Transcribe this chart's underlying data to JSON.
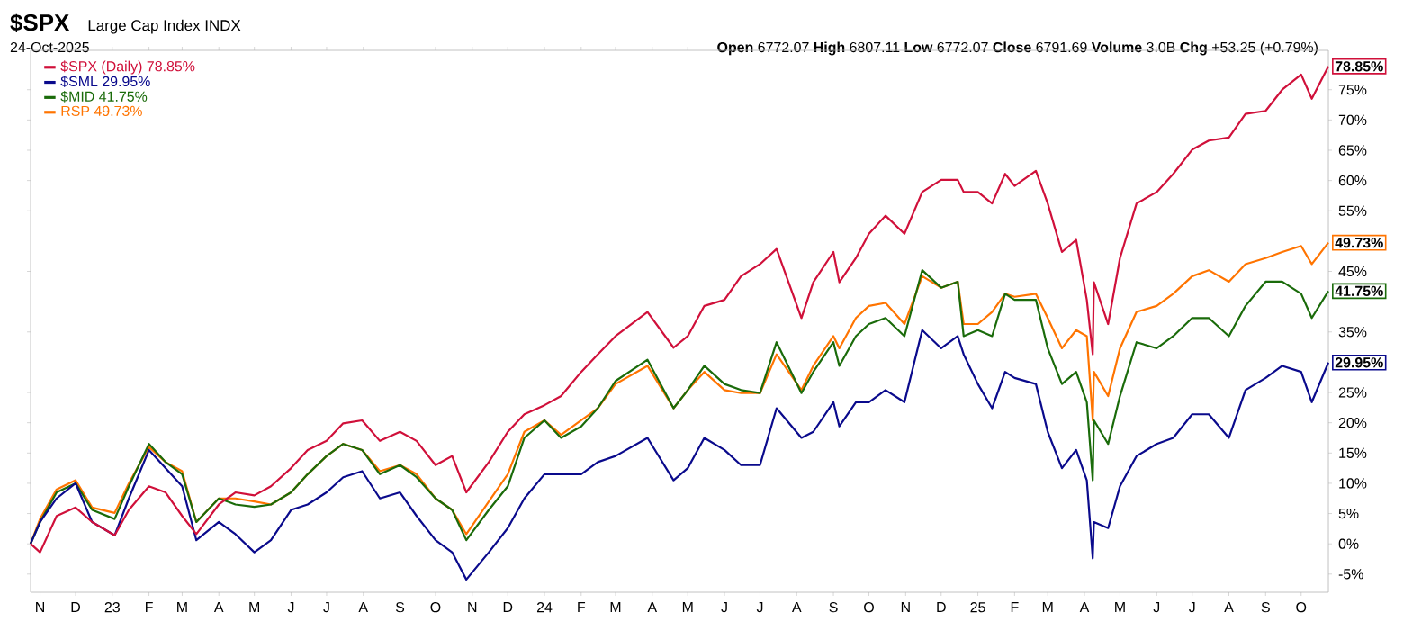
{
  "chart_data": {
    "type": "line",
    "title": "$SPX",
    "subtitle": "Large Cap Index INDX",
    "annotations": [
      "24-Oct-2025",
      "**Open** 6772.07 **High** 6807.11 **Low** 6772.07 **Close** 6791.69 **Volume** 3.0B **Chg** +53.25 (+0.79%)"
    ],
    "x": [
      "2022-10-24",
      "2022-11-01",
      "2022-11-15",
      "2022-12-01",
      "2022-12-15",
      "2023-01-03",
      "2023-01-15",
      "2023-02-01",
      "2023-02-15",
      "2023-03-01",
      "2023-03-13",
      "2023-04-01",
      "2023-04-15",
      "2023-05-01",
      "2023-05-15",
      "2023-06-01",
      "2023-06-15",
      "2023-07-01",
      "2023-07-15",
      "2023-07-31",
      "2023-08-15",
      "2023-09-01",
      "2023-09-15",
      "2023-10-01",
      "2023-10-15",
      "2023-10-27",
      "2023-11-15",
      "2023-12-01",
      "2023-12-15",
      "2024-01-01",
      "2024-01-15",
      "2024-02-01",
      "2024-02-15",
      "2024-03-01",
      "2024-03-28",
      "2024-04-19",
      "2024-05-01",
      "2024-05-15",
      "2024-06-01",
      "2024-06-15",
      "2024-07-01",
      "2024-07-15",
      "2024-08-05",
      "2024-08-15",
      "2024-09-01",
      "2024-09-06",
      "2024-09-20",
      "2024-10-01",
      "2024-10-15",
      "2024-10-31",
      "2024-11-15",
      "2024-12-01",
      "2024-12-15",
      "2024-12-20",
      "2025-01-01",
      "2025-01-13",
      "2025-01-24",
      "2025-02-01",
      "2025-02-19",
      "2025-03-01",
      "2025-03-13",
      "2025-03-25",
      "2025-04-03",
      "2025-04-08",
      "2025-04-09",
      "2025-04-21",
      "2025-05-01",
      "2025-05-15",
      "2025-06-01",
      "2025-06-15",
      "2025-07-01",
      "2025-07-15",
      "2025-08-01",
      "2025-08-15",
      "2025-09-01",
      "2025-09-15",
      "2025-10-01",
      "2025-10-10",
      "2025-10-24"
    ],
    "series": [
      {
        "name": "$SPX (Daily) 78.85%",
        "color": "#d0103a",
        "values": [
          0,
          -1.4,
          4.6,
          6.0,
          3.6,
          1.4,
          5.6,
          9.5,
          8.5,
          4.6,
          1.6,
          6.5,
          8.5,
          8.0,
          9.5,
          12.5,
          15.5,
          17.0,
          19.9,
          20.4,
          17.0,
          18.5,
          17.0,
          13.0,
          14.5,
          8.5,
          13.5,
          18.5,
          21.4,
          22.9,
          24.4,
          28.4,
          31.3,
          34.3,
          38.3,
          32.4,
          34.3,
          39.3,
          40.3,
          44.2,
          46.2,
          48.7,
          37.3,
          43.2,
          48.2,
          43.2,
          47.2,
          51.2,
          54.2,
          51.2,
          58.1,
          60.1,
          60.1,
          58.1,
          58.1,
          56.2,
          61.1,
          59.1,
          61.6,
          56.2,
          48.2,
          50.2,
          40.3,
          31.3,
          43.2,
          36.3,
          47.2,
          56.2,
          58.1,
          61.1,
          65.1,
          66.6,
          67.1,
          71.0,
          71.5,
          75.0,
          77.5,
          73.5,
          78.85
        ],
        "value_labels": [
          null,
          null,
          null,
          null,
          null,
          null,
          null,
          null,
          null,
          null,
          null,
          null,
          null,
          null,
          null,
          null,
          null,
          null,
          null,
          null,
          null,
          null,
          null,
          null,
          null,
          null,
          null,
          null,
          null,
          null,
          null,
          null,
          null,
          null,
          null,
          null,
          null,
          null,
          null,
          null,
          null,
          null,
          null,
          null,
          null,
          null,
          null,
          null,
          null,
          null,
          null,
          null,
          null,
          null,
          null,
          null,
          null,
          null,
          null,
          null,
          null,
          null,
          null,
          null,
          null,
          null,
          null,
          null,
          null,
          null,
          null,
          null,
          null,
          null,
          null,
          null,
          null,
          null,
          "78.85%"
        ]
      },
      {
        "name": "$SML 29.95%",
        "color": "#0a0a8c",
        "values": [
          0,
          3.6,
          7.5,
          10.0,
          3.6,
          1.4,
          7.5,
          15.5,
          12.5,
          9.5,
          0.6,
          3.6,
          1.6,
          -1.4,
          0.6,
          5.6,
          6.5,
          8.5,
          11.0,
          12.0,
          7.5,
          8.5,
          4.6,
          0.6,
          -1.4,
          -5.9,
          -1.4,
          2.6,
          7.5,
          11.5,
          11.5,
          11.5,
          13.5,
          14.5,
          17.5,
          10.5,
          12.5,
          17.5,
          15.5,
          13.0,
          13.0,
          22.4,
          17.5,
          18.5,
          23.4,
          19.4,
          23.4,
          23.4,
          25.4,
          23.4,
          35.3,
          32.3,
          34.3,
          31.3,
          26.4,
          22.4,
          28.4,
          27.4,
          26.4,
          18.5,
          12.5,
          15.5,
          10.5,
          -2.4,
          3.6,
          2.6,
          9.5,
          14.5,
          16.5,
          17.5,
          21.4,
          21.4,
          17.5,
          25.4,
          27.4,
          29.4,
          28.4,
          23.4,
          29.95
        ],
        "value_labels": [
          null,
          null,
          null,
          null,
          null,
          null,
          null,
          null,
          null,
          null,
          null,
          null,
          null,
          null,
          null,
          null,
          null,
          null,
          null,
          null,
          null,
          null,
          null,
          null,
          null,
          null,
          null,
          null,
          null,
          null,
          null,
          null,
          null,
          null,
          null,
          null,
          null,
          null,
          null,
          null,
          null,
          null,
          null,
          null,
          null,
          null,
          null,
          null,
          null,
          null,
          null,
          null,
          null,
          null,
          null,
          null,
          null,
          null,
          null,
          null,
          null,
          null,
          null,
          null,
          null,
          null,
          null,
          null,
          null,
          null,
          null,
          null,
          null,
          null,
          null,
          null,
          null,
          null,
          "29.95%"
        ]
      },
      {
        "name": "$MID 41.75%",
        "color": "#1a6b0a",
        "values": [
          0,
          3.6,
          8.5,
          10.0,
          5.6,
          4.1,
          9.5,
          16.5,
          13.5,
          11.5,
          3.6,
          7.5,
          6.5,
          6.1,
          6.5,
          8.5,
          11.5,
          14.5,
          16.5,
          15.5,
          11.5,
          13.0,
          11.0,
          7.5,
          5.6,
          0.6,
          5.6,
          9.5,
          17.5,
          20.4,
          17.5,
          19.4,
          22.4,
          26.9,
          30.4,
          22.4,
          25.4,
          29.4,
          26.4,
          25.4,
          24.9,
          33.3,
          24.9,
          28.4,
          33.3,
          29.4,
          34.3,
          36.3,
          37.3,
          34.3,
          45.2,
          42.3,
          43.3,
          34.3,
          35.3,
          34.3,
          41.3,
          40.3,
          40.3,
          32.3,
          26.4,
          28.4,
          23.4,
          10.5,
          20.4,
          16.5,
          24.4,
          33.3,
          32.3,
          34.3,
          37.3,
          37.3,
          34.3,
          39.3,
          43.3,
          43.3,
          41.3,
          37.3,
          41.75
        ],
        "value_labels": [
          null,
          null,
          null,
          null,
          null,
          null,
          null,
          null,
          null,
          null,
          null,
          null,
          null,
          null,
          null,
          null,
          null,
          null,
          null,
          null,
          null,
          null,
          null,
          null,
          null,
          null,
          null,
          null,
          null,
          null,
          null,
          null,
          null,
          null,
          null,
          null,
          null,
          null,
          null,
          null,
          null,
          null,
          null,
          null,
          null,
          null,
          null,
          null,
          null,
          null,
          null,
          null,
          null,
          null,
          null,
          null,
          null,
          null,
          null,
          null,
          null,
          null,
          null,
          null,
          null,
          null,
          null,
          null,
          null,
          null,
          null,
          null,
          null,
          null,
          null,
          null,
          null,
          null,
          "41.75%"
        ]
      },
      {
        "name": "RSP 49.73%",
        "color": "#ff7400",
        "values": [
          0,
          4.1,
          9.0,
          10.5,
          6.0,
          5.1,
          10.0,
          16.0,
          13.5,
          12.0,
          3.6,
          7.5,
          7.5,
          7.0,
          6.5,
          8.5,
          11.5,
          14.5,
          16.5,
          15.5,
          12.0,
          13.0,
          11.5,
          7.5,
          5.6,
          1.6,
          7.0,
          11.5,
          18.5,
          20.4,
          18.0,
          20.4,
          22.4,
          26.4,
          29.4,
          22.4,
          25.4,
          28.4,
          25.4,
          24.9,
          24.9,
          31.3,
          25.4,
          29.4,
          34.3,
          32.3,
          37.3,
          39.3,
          39.8,
          36.3,
          44.2,
          42.3,
          43.3,
          36.3,
          36.3,
          38.3,
          41.3,
          40.8,
          41.3,
          37.3,
          32.3,
          35.3,
          34.3,
          20.4,
          28.4,
          24.4,
          32.3,
          38.3,
          39.3,
          41.3,
          44.2,
          45.2,
          43.3,
          46.2,
          47.2,
          48.2,
          49.2,
          46.2,
          49.73
        ],
        "value_labels": [
          null,
          null,
          null,
          null,
          null,
          null,
          null,
          null,
          null,
          null,
          null,
          null,
          null,
          null,
          null,
          null,
          null,
          null,
          null,
          null,
          null,
          null,
          null,
          null,
          null,
          null,
          null,
          null,
          null,
          null,
          null,
          null,
          null,
          null,
          null,
          null,
          null,
          null,
          null,
          null,
          null,
          null,
          null,
          null,
          null,
          null,
          null,
          null,
          null,
          null,
          null,
          null,
          null,
          null,
          null,
          null,
          null,
          null,
          null,
          null,
          null,
          null,
          null,
          null,
          null,
          null,
          null,
          null,
          null,
          null,
          null,
          null,
          null,
          null,
          null,
          null,
          null,
          null,
          "49.73%"
        ]
      }
    ],
    "xlim": [
      "2022-10-24",
      "2025-10-24"
    ],
    "xticks": [
      {
        "value": "2022-11-01",
        "label": "N"
      },
      {
        "value": "2022-12-01",
        "label": "D"
      },
      {
        "value": "2023-01-01",
        "label": "23"
      },
      {
        "value": "2023-02-01",
        "label": "F"
      },
      {
        "value": "2023-03-01",
        "label": "M"
      },
      {
        "value": "2023-04-01",
        "label": "A"
      },
      {
        "value": "2023-05-01",
        "label": "M"
      },
      {
        "value": "2023-06-01",
        "label": "J"
      },
      {
        "value": "2023-07-01",
        "label": "J"
      },
      {
        "value": "2023-08-01",
        "label": "A"
      },
      {
        "value": "2023-09-01",
        "label": "S"
      },
      {
        "value": "2023-10-01",
        "label": "O"
      },
      {
        "value": "2023-11-01",
        "label": "N"
      },
      {
        "value": "2023-12-01",
        "label": "D"
      },
      {
        "value": "2024-01-01",
        "label": "24"
      },
      {
        "value": "2024-02-01",
        "label": "F"
      },
      {
        "value": "2024-03-01",
        "label": "M"
      },
      {
        "value": "2024-04-01",
        "label": "A"
      },
      {
        "value": "2024-05-01",
        "label": "M"
      },
      {
        "value": "2024-06-01",
        "label": "J"
      },
      {
        "value": "2024-07-01",
        "label": "J"
      },
      {
        "value": "2024-08-01",
        "label": "A"
      },
      {
        "value": "2024-09-01",
        "label": "S"
      },
      {
        "value": "2024-10-01",
        "label": "O"
      },
      {
        "value": "2024-11-01",
        "label": "N"
      },
      {
        "value": "2024-12-01",
        "label": "D"
      },
      {
        "value": "2025-01-01",
        "label": "25"
      },
      {
        "value": "2025-02-01",
        "label": "F"
      },
      {
        "value": "2025-03-01",
        "label": "M"
      },
      {
        "value": "2025-04-01",
        "label": "A"
      },
      {
        "value": "2025-05-01",
        "label": "M"
      },
      {
        "value": "2025-06-01",
        "label": "J"
      },
      {
        "value": "2025-07-01",
        "label": "J"
      },
      {
        "value": "2025-08-01",
        "label": "A"
      },
      {
        "value": "2025-09-01",
        "label": "S"
      },
      {
        "value": "2025-10-01",
        "label": "O"
      }
    ],
    "ylim": [
      -8,
      81.5
    ],
    "yticks": [
      {
        "value": -5,
        "label": "-5%"
      },
      {
        "value": 0,
        "label": "0%"
      },
      {
        "value": 5,
        "label": "5%"
      },
      {
        "value": 10,
        "label": "10%"
      },
      {
        "value": 15,
        "label": "15%"
      },
      {
        "value": 20,
        "label": "20%"
      },
      {
        "value": 25,
        "label": "25%"
      },
      {
        "value": 35,
        "label": "35%"
      },
      {
        "value": 45,
        "label": "45%"
      },
      {
        "value": 55,
        "label": "55%"
      },
      {
        "value": 60,
        "label": "60%"
      },
      {
        "value": 65,
        "label": "65%"
      },
      {
        "value": 70,
        "label": "70%"
      },
      {
        "value": 75,
        "label": "75%"
      }
    ],
    "legend": "top left",
    "marker": "none",
    "line_style": "solid"
  }
}
